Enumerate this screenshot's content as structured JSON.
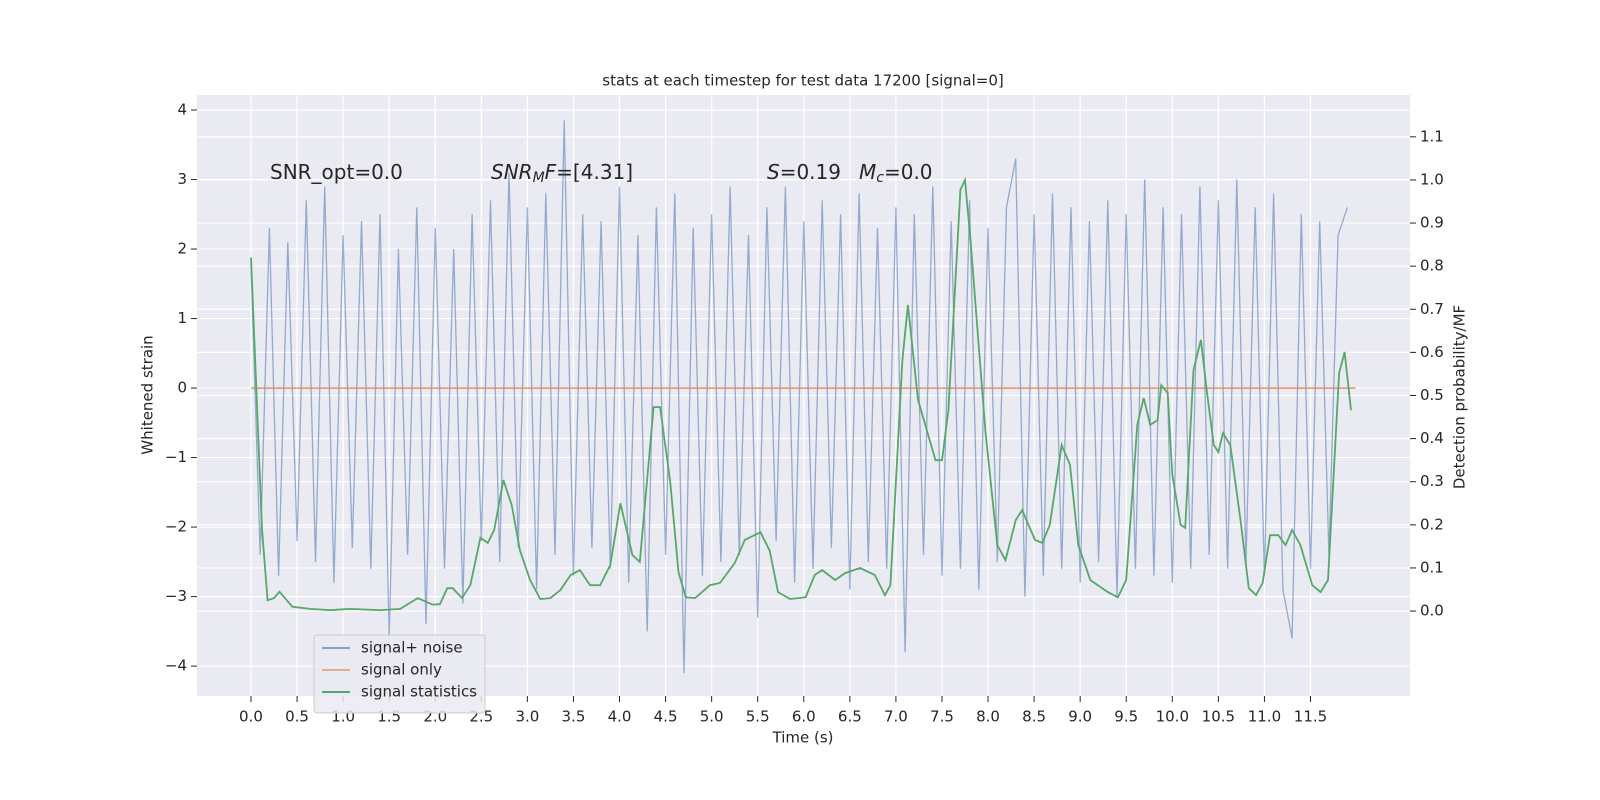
{
  "chart_data": {
    "type": "line",
    "title": "stats at each timestep for test data 17200 [signal=0]",
    "x_label": "Time (s)",
    "y_label": "Whitened strain",
    "y2_label": "Detection probability/MF",
    "annotations": [
      [
        {
          "text": "SNR_opt=0.0",
          "style": "normal"
        }
      ],
      [
        {
          "text": "SNR",
          "style": "italic"
        },
        {
          "text": "M",
          "style": "sub"
        },
        {
          "text": "F",
          "style": "italic"
        },
        {
          "text": "=[4.31]",
          "style": "normal"
        }
      ],
      [
        {
          "text": "S",
          "style": "italic"
        },
        {
          "text": "=0.19",
          "style": "normal"
        }
      ],
      [
        {
          "text": "M",
          "style": "italic"
        },
        {
          "text": "c",
          "style": "sub"
        },
        {
          "text": "=0.0",
          "style": "normal"
        }
      ]
    ],
    "xlim": [
      -0.586,
      12.58
    ],
    "ylim": [
      -4.43,
      4.216
    ],
    "y2lim": [
      -0.197,
      1.197
    ],
    "xticks": [
      {
        "value": 0,
        "label": "0.0"
      },
      0.5,
      {
        "value": 1,
        "label": "1.0"
      },
      1.5,
      {
        "value": 2,
        "label": "2.0"
      },
      2.5,
      {
        "value": 3,
        "label": "3.0"
      },
      3.5,
      {
        "value": 4,
        "label": "4.0"
      },
      4.5,
      {
        "value": 5,
        "label": "5.0"
      },
      5.5,
      {
        "value": 6,
        "label": "6.0"
      },
      6.5,
      {
        "value": 7,
        "label": "7.0"
      },
      7.5,
      {
        "value": 8,
        "label": "8.0"
      },
      8.5,
      {
        "value": 9,
        "label": "9.0"
      },
      9.5,
      {
        "value": 10,
        "label": "10.0"
      },
      10.5,
      {
        "value": 11,
        "label": "11.0"
      },
      11.5
    ],
    "yticks": [
      {
        "value": -4,
        "label": "−4"
      },
      {
        "value": -3,
        "label": "−3"
      },
      {
        "value": -2,
        "label": "−2"
      },
      {
        "value": -1,
        "label": "−1"
      },
      0,
      1,
      2,
      3,
      4
    ],
    "y2ticks": [
      {
        "value": 0,
        "label": "0.0"
      },
      0.1,
      0.2,
      0.3,
      0.4,
      0.5,
      0.6,
      0.7,
      0.8,
      0.9,
      {
        "value": 1,
        "label": "1.0"
      },
      1.1
    ],
    "grid": true,
    "legend": "lower left",
    "series": [
      {
        "name": "signal+ noise",
        "color": "#4c72b0",
        "axis": "y",
        "x": [
          0,
          0.1,
          0.2,
          0.3,
          0.4,
          0.5,
          0.6,
          0.7,
          0.8,
          0.9,
          1,
          1.1,
          1.2,
          1.3,
          1.4,
          1.5,
          1.6,
          1.7,
          1.8,
          1.9,
          2,
          2.1,
          2.2,
          2.3,
          2.4,
          2.5,
          2.6,
          2.7,
          2.8,
          2.9,
          3,
          3.1,
          3.2,
          3.3,
          3.4,
          3.5,
          3.6,
          3.7,
          3.8,
          3.9,
          4,
          4.1,
          4.2,
          4.3,
          4.4,
          4.5,
          4.6,
          4.7,
          4.8,
          4.9,
          5,
          5.1,
          5.2,
          5.3,
          5.4,
          5.5,
          5.6,
          5.7,
          5.8,
          5.9,
          6,
          6.1,
          6.2,
          6.3,
          6.4,
          6.5,
          6.6,
          6.7,
          6.8,
          6.9,
          7,
          7.1,
          7.2,
          7.3,
          7.4,
          7.5,
          7.6,
          7.7,
          7.8,
          7.9,
          8,
          8.1,
          8.2,
          8.3,
          8.4,
          8.5,
          8.6,
          8.7,
          8.8,
          8.9,
          9,
          9.1,
          9.2,
          9.3,
          9.4,
          9.5,
          9.6,
          9.7,
          9.8,
          9.9,
          10,
          10.1,
          10.2,
          10.3,
          10.4,
          10.5,
          10.6,
          10.7,
          10.8,
          10.9,
          11,
          11.1,
          11.2,
          11.3,
          11.4,
          11.5,
          11.6,
          11.7,
          11.8,
          11.9
        ],
        "values": [
          1.8,
          -2.4,
          2.3,
          -2.7,
          2.1,
          -2.2,
          2.7,
          -2.5,
          2.9,
          -2.8,
          2.2,
          -2.3,
          2.4,
          -2.6,
          2.5,
          -3.6,
          2.0,
          -2.4,
          2.6,
          -3.4,
          2.3,
          -2.6,
          2.0,
          -3.1,
          2.5,
          -2.2,
          2.7,
          -2.5,
          3.1,
          -2.3,
          2.6,
          -2.9,
          2.8,
          -2.4,
          3.85,
          -2.7,
          2.5,
          -2.3,
          2.4,
          -2.6,
          2.9,
          -2.8,
          2.2,
          -3.5,
          2.6,
          -2.4,
          2.8,
          -4.1,
          2.3,
          -2.7,
          2.5,
          -2.5,
          2.9,
          -2.4,
          2.2,
          -3.3,
          2.6,
          -2.2,
          2.9,
          -2.8,
          2.4,
          -2.6,
          2.7,
          -2.3,
          2.5,
          -2.9,
          2.8,
          -2.5,
          2.3,
          -2.6,
          2.6,
          -3.8,
          2.5,
          -2.4,
          2.9,
          -2.7,
          2.4,
          -2.6,
          2.7,
          -2.9,
          2.3,
          -2.5,
          2.6,
          3.3,
          -3.0,
          2.5,
          -2.7,
          2.8,
          -2.6,
          2.6,
          -2.8,
          2.4,
          -2.5,
          2.7,
          -3.0,
          2.5,
          -2.6,
          3.0,
          -2.7,
          2.6,
          -2.8,
          2.5,
          -2.6,
          2.9,
          -2.4,
          2.7,
          -2.6,
          3.0,
          -2.5,
          2.6,
          -2.7,
          2.8,
          -2.9,
          -3.6,
          2.5,
          -2.6,
          2.4,
          -2.4,
          2.2,
          2.6
        ]
      },
      {
        "name": "signal only",
        "color": "#dd8452",
        "axis": "y",
        "x": [
          0,
          11.99
        ],
        "values": [
          0,
          0
        ]
      },
      {
        "name": "signal statistics",
        "color": "#55a868",
        "axis": "y2",
        "x": [
          0,
          0.12,
          0.18,
          0.25,
          0.31,
          0.45,
          0.64,
          0.86,
          1.07,
          1.4,
          1.62,
          1.81,
          1.97,
          2.05,
          2.13,
          2.19,
          2.29,
          2.38,
          2.49,
          2.57,
          2.64,
          2.74,
          2.83,
          2.92,
          3.03,
          3.14,
          3.25,
          3.36,
          3.47,
          3.57,
          3.68,
          3.79,
          3.9,
          4.01,
          4.14,
          4.22,
          4.37,
          4.44,
          4.55,
          4.64,
          4.72,
          4.82,
          4.98,
          5.09,
          5.25,
          5.36,
          5.53,
          5.63,
          5.72,
          5.85,
          6.02,
          6.12,
          6.2,
          6.34,
          6.45,
          6.61,
          6.77,
          6.88,
          6.94,
          7.07,
          7.13,
          7.24,
          7.43,
          7.5,
          7.57,
          7.7,
          7.75,
          7.81,
          7.97,
          8.1,
          8.19,
          8.3,
          8.37,
          8.51,
          8.59,
          8.67,
          8.8,
          8.89,
          8.98,
          9.11,
          9.3,
          9.41,
          9.5,
          9.62,
          9.69,
          9.76,
          9.84,
          9.88,
          9.95,
          10.0,
          10.09,
          10.14,
          10.23,
          10.31,
          10.38,
          10.45,
          10.5,
          10.55,
          10.63,
          10.74,
          10.83,
          10.91,
          10.98,
          11.06,
          11.15,
          11.23,
          11.3,
          11.39,
          11.52,
          11.61,
          11.69,
          11.81,
          11.87,
          11.94
        ],
        "values": [
          0.82,
          0.19,
          0.025,
          0.03,
          0.045,
          0.01,
          0.005,
          0.002,
          0.005,
          0.002,
          0.005,
          0.03,
          0.015,
          0.016,
          0.053,
          0.053,
          0.03,
          0.06,
          0.17,
          0.158,
          0.188,
          0.304,
          0.246,
          0.14,
          0.072,
          0.028,
          0.03,
          0.049,
          0.084,
          0.095,
          0.06,
          0.06,
          0.107,
          0.25,
          0.13,
          0.114,
          0.473,
          0.473,
          0.3,
          0.09,
          0.032,
          0.03,
          0.06,
          0.065,
          0.111,
          0.165,
          0.183,
          0.14,
          0.044,
          0.028,
          0.032,
          0.084,
          0.095,
          0.072,
          0.088,
          0.1,
          0.084,
          0.037,
          0.06,
          0.582,
          0.71,
          0.49,
          0.35,
          0.35,
          0.466,
          0.977,
          1.0,
          0.86,
          0.42,
          0.153,
          0.118,
          0.211,
          0.234,
          0.165,
          0.158,
          0.2,
          0.385,
          0.339,
          0.153,
          0.072,
          0.044,
          0.032,
          0.072,
          0.432,
          0.494,
          0.432,
          0.443,
          0.524,
          0.506,
          0.316,
          0.2,
          0.193,
          0.559,
          0.629,
          0.501,
          0.385,
          0.369,
          0.413,
          0.385,
          0.211,
          0.053,
          0.037,
          0.065,
          0.176,
          0.176,
          0.153,
          0.188,
          0.153,
          0.06,
          0.044,
          0.072,
          0.552,
          0.601,
          0.466
        ]
      }
    ]
  }
}
